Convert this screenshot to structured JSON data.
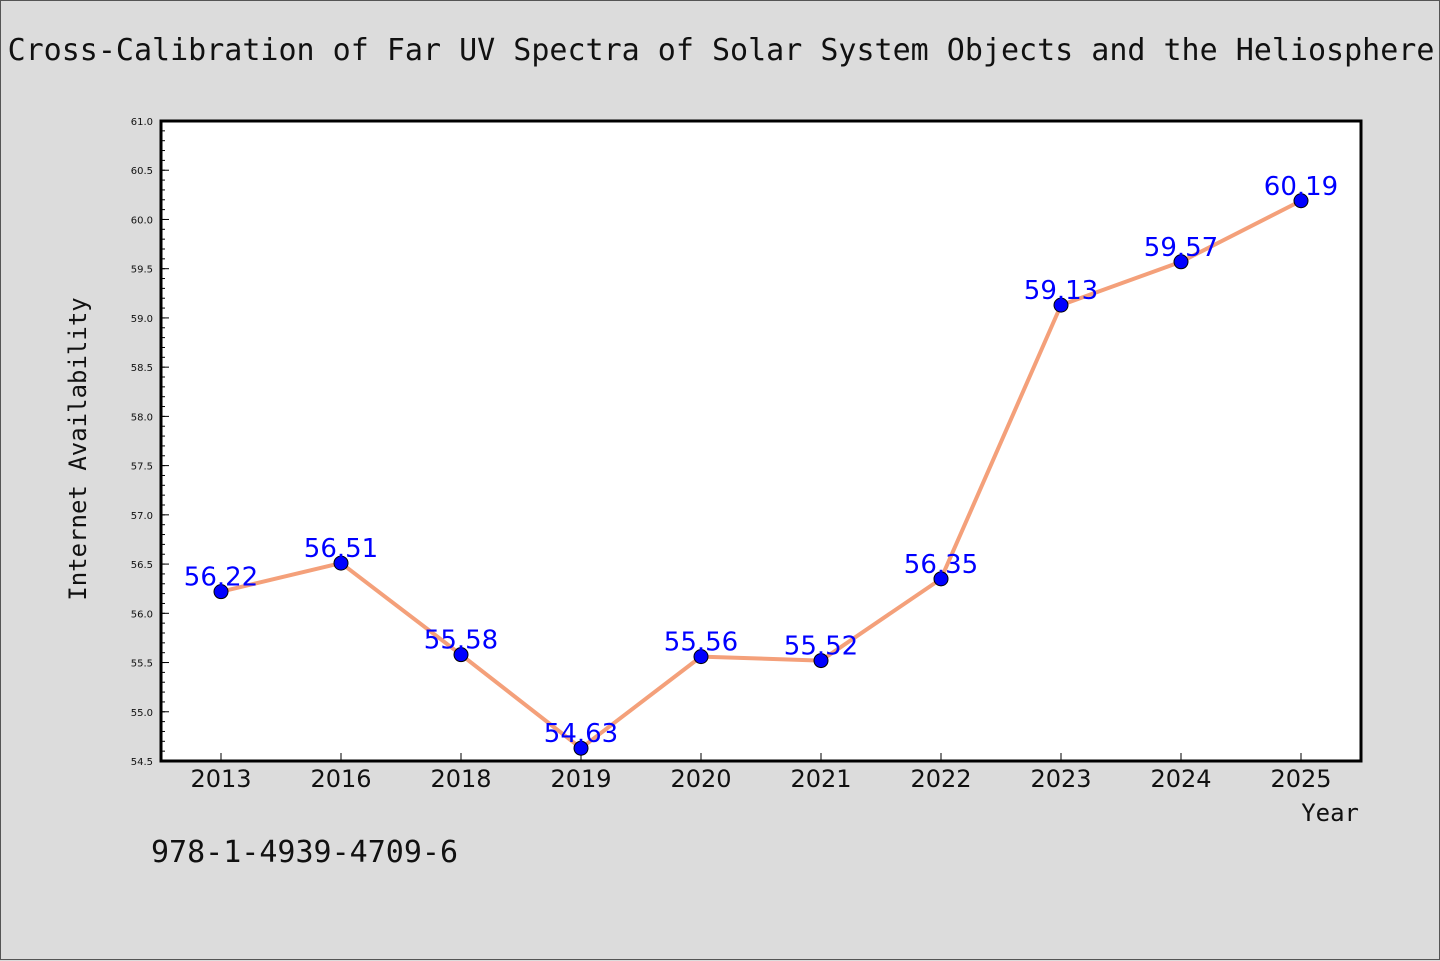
{
  "title": "Cross-Calibration of Far UV Spectra of Solar System Objects and the Heliosphere",
  "footer_text": "978-1-4939-4709-6",
  "colors": {
    "background": "#dcdcdc",
    "line": "#f4a07a",
    "marker": "#0000ff",
    "label": "#0000ff"
  },
  "chart_data": {
    "type": "line",
    "title": "Cross-Calibration of Far UV Spectra of Solar System Objects and the Heliosphere",
    "xlabel": "Year",
    "ylabel": "Internet Availability",
    "categories": [
      "2013",
      "2016",
      "2018",
      "2019",
      "2020",
      "2021",
      "2022",
      "2023",
      "2024",
      "2025"
    ],
    "values": [
      56.22,
      56.51,
      55.58,
      54.63,
      55.56,
      55.52,
      56.35,
      59.13,
      59.57,
      60.19
    ],
    "value_labels": [
      "56.22",
      "56.51",
      "55.58",
      "54.63",
      "55.56",
      "55.52",
      "56.35",
      "59.13",
      "59.57",
      "60.19"
    ],
    "ylim": [
      54.5,
      61.0
    ],
    "yticks": [
      "54.5",
      "55.0",
      "55.5",
      "56.0",
      "56.5",
      "57.0",
      "57.5",
      "58.0",
      "58.5",
      "59.0",
      "59.5",
      "60.0",
      "60.5",
      "61.0"
    ],
    "grid": false,
    "legend": "none"
  }
}
